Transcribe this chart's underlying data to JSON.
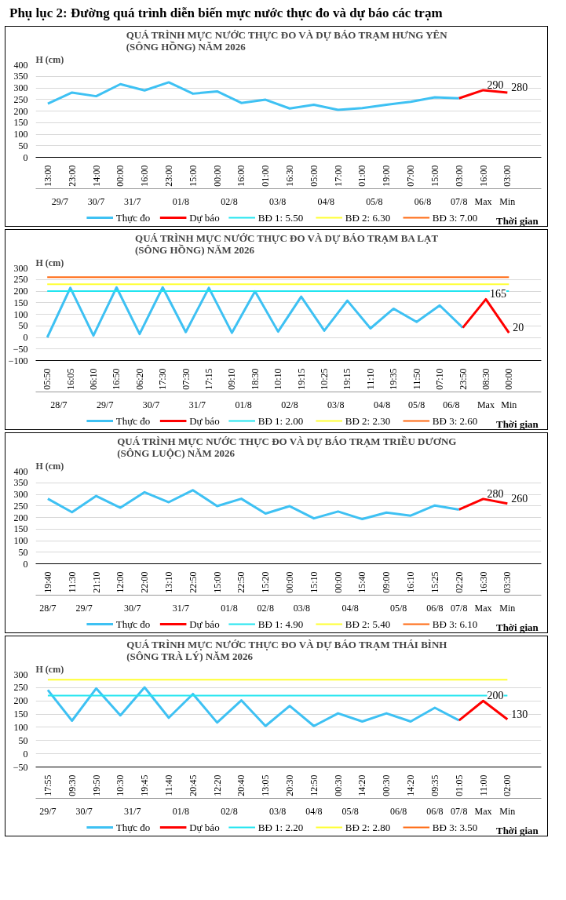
{
  "chart_data": [
    {
      "type": "line",
      "title": "QUÁ TRÌNH MỰC NƯỚC THỰC ĐO VÀ DỰ BÁO TRẠM  HƯNG YÊN\n(SÔNG HỒNG) NĂM 2026",
      "ylabel": "H (cm)",
      "xlabel": "Thời gian",
      "categories": [
        "13:00",
        "23:00",
        "14:00",
        "00:00",
        "16:00",
        "23:00",
        "15:00",
        "00:00",
        "16:00",
        "01:00",
        "16:30",
        "05:00",
        "17:00",
        "01:00",
        "19:00",
        "07:00",
        "15:00",
        "03:00",
        "16:00",
        "03:00"
      ],
      "ylim": [
        0,
        400
      ],
      "yticks": [
        0,
        50,
        100,
        150,
        200,
        250,
        300,
        350,
        400
      ],
      "grid": "y",
      "legend": "bottom",
      "series": [
        {
          "name": "Thực đo",
          "color": "#3ec1f3",
          "values": [
            232,
            280,
            264,
            316,
            289,
            324,
            275,
            285,
            235,
            249,
            211,
            227,
            205,
            213,
            227,
            240,
            259,
            255,
            null,
            null
          ]
        },
        {
          "name": "Dự báo",
          "color": "#ff0000",
          "values": [
            null,
            null,
            null,
            null,
            null,
            null,
            null,
            null,
            null,
            null,
            null,
            null,
            null,
            null,
            null,
            null,
            null,
            255,
            290,
            280
          ],
          "value_labels": [
            null,
            null,
            null,
            null,
            null,
            null,
            null,
            null,
            null,
            null,
            null,
            null,
            null,
            null,
            null,
            null,
            null,
            null,
            "290",
            "280"
          ]
        },
        {
          "name": "BĐ 1: 5.50",
          "color": "#22e5f0",
          "values": [
            null,
            null,
            null,
            null,
            null,
            null,
            null,
            null,
            null,
            null,
            null,
            null,
            null,
            null,
            null,
            null,
            null,
            null,
            null,
            null
          ]
        },
        {
          "name": "BĐ 2: 6.30",
          "color": "#ffff33",
          "values": [
            null,
            null,
            null,
            null,
            null,
            null,
            null,
            null,
            null,
            null,
            null,
            null,
            null,
            null,
            null,
            null,
            null,
            null,
            null,
            null
          ]
        },
        {
          "name": "BĐ 3: 7.00",
          "color": "#ff6a13",
          "values": [
            null,
            null,
            null,
            null,
            null,
            null,
            null,
            null,
            null,
            null,
            null,
            null,
            null,
            null,
            null,
            null,
            null,
            null,
            null,
            null
          ]
        }
      ],
      "annotations": [
        "Phụ lục 2: Đường quá trình diễn biến mực nước thực đo và dự báo các trạm",
        "29/7",
        "30/7",
        "31/7",
        "01/8",
        "02/8",
        "03/8",
        "04/8",
        "05/8",
        "06/8",
        "07/8",
        "Max",
        "Min"
      ]
    },
    {
      "type": "line",
      "title": "QUÁ TRÌNH MỰC NƯỚC THỰC ĐO VÀ DỰ BÁO TRẠM  BA LẠT\n(SÔNG HỒNG) NĂM 2026",
      "ylabel": "H (cm)",
      "xlabel": "Thời gian",
      "categories": [
        "05:50",
        "16:05",
        "06:10",
        "16:50",
        "06:20",
        "17:30",
        "07:30",
        "17:15",
        "09:10",
        "18:30",
        "10:10",
        "19:15",
        "10:25",
        "19:15",
        "11:10",
        "19:35",
        "11:50",
        "07:10",
        "23:50",
        "08:30",
        "00:00"
      ],
      "ylim": [
        -100,
        300
      ],
      "yticks": [
        -100,
        -50,
        0,
        50,
        100,
        150,
        200,
        250,
        300
      ],
      "grid": "y",
      "legend": "bottom",
      "series": [
        {
          "name": "Thực đo",
          "color": "#3ec1f3",
          "values": [
            0,
            214,
            8,
            216,
            15,
            216,
            23,
            214,
            20,
            199,
            25,
            176,
            29,
            159,
            39,
            124,
            67,
            138,
            42,
            null,
            null
          ]
        },
        {
          "name": "Dự báo",
          "color": "#ff0000",
          "values": [
            null,
            null,
            null,
            null,
            null,
            null,
            null,
            null,
            null,
            null,
            null,
            null,
            null,
            null,
            null,
            null,
            null,
            null,
            42,
            165,
            20
          ],
          "value_labels": [
            null,
            null,
            null,
            null,
            null,
            null,
            null,
            null,
            null,
            null,
            null,
            null,
            null,
            null,
            null,
            null,
            null,
            null,
            null,
            "165",
            "20"
          ]
        },
        {
          "name": "BĐ 1: 2.00",
          "color": "#22e5f0",
          "values": [
            200,
            200,
            200,
            200,
            200,
            200,
            200,
            200,
            200,
            200,
            200,
            200,
            200,
            200,
            200,
            200,
            200,
            200,
            200,
            200,
            200
          ]
        },
        {
          "name": "BĐ 2: 2.30",
          "color": "#ffff33",
          "values": [
            230,
            230,
            230,
            230,
            230,
            230,
            230,
            230,
            230,
            230,
            230,
            230,
            230,
            230,
            230,
            230,
            230,
            230,
            230,
            230,
            230
          ]
        },
        {
          "name": "BĐ 3: 2.60",
          "color": "#ff6a13",
          "values": [
            260,
            260,
            260,
            260,
            260,
            260,
            260,
            260,
            260,
            260,
            260,
            260,
            260,
            260,
            260,
            260,
            260,
            260,
            260,
            260,
            260
          ]
        }
      ],
      "annotations": [
        "28/7",
        "29/7",
        "30/7",
        "31/7",
        "01/8",
        "02/8",
        "03/8",
        "04/8",
        "05/8",
        "06/8",
        "Max",
        "Min"
      ]
    },
    {
      "type": "line",
      "title": "QUÁ TRÌNH MỰC NƯỚC THỰC ĐO VÀ DỰ BÁO TRẠM  TRIỀU DƯƠNG\n(SÔNG LUỘC) NĂM 2026",
      "ylabel": "H (cm)",
      "xlabel": "Thời gian",
      "categories": [
        "19:40",
        "11:30",
        "21:10",
        "12:00",
        "22:00",
        "13:10",
        "22:50",
        "15:00",
        "22:50",
        "15:20",
        "00:00",
        "15:10",
        "00:00",
        "15:40",
        "09:00",
        "16:10",
        "15:25",
        "02:20",
        "16:30",
        "03:30"
      ],
      "ylim": [
        0,
        400
      ],
      "yticks": [
        0,
        50,
        100,
        150,
        200,
        250,
        300,
        350,
        400
      ],
      "grid": "y",
      "legend": "bottom",
      "series": [
        {
          "name": "Thực đo",
          "color": "#3ec1f3",
          "values": [
            281,
            223,
            293,
            242,
            309,
            266,
            318,
            249,
            281,
            217,
            249,
            196,
            226,
            193,
            221,
            208,
            252,
            234,
            null,
            null
          ]
        },
        {
          "name": "Dự báo",
          "color": "#ff0000",
          "values": [
            null,
            null,
            null,
            null,
            null,
            null,
            null,
            null,
            null,
            null,
            null,
            null,
            null,
            null,
            null,
            null,
            null,
            234,
            280,
            260
          ],
          "value_labels": [
            null,
            null,
            null,
            null,
            null,
            null,
            null,
            null,
            null,
            null,
            null,
            null,
            null,
            null,
            null,
            null,
            null,
            null,
            "280",
            "260"
          ]
        },
        {
          "name": "BĐ 1: 4.90",
          "color": "#22e5f0",
          "values": [
            null,
            null,
            null,
            null,
            null,
            null,
            null,
            null,
            null,
            null,
            null,
            null,
            null,
            null,
            null,
            null,
            null,
            null,
            null,
            null
          ]
        },
        {
          "name": "BĐ 2: 5.40",
          "color": "#ffff33",
          "values": [
            null,
            null,
            null,
            null,
            null,
            null,
            null,
            null,
            null,
            null,
            null,
            null,
            null,
            null,
            null,
            null,
            null,
            null,
            null,
            null
          ]
        },
        {
          "name": "BĐ 3: 6.10",
          "color": "#ff6a13",
          "values": [
            null,
            null,
            null,
            null,
            null,
            null,
            null,
            null,
            null,
            null,
            null,
            null,
            null,
            null,
            null,
            null,
            null,
            null,
            null,
            null
          ]
        }
      ],
      "annotations": [
        "28/7",
        "29/7",
        "30/7",
        "31/7",
        "01/8",
        "02/8",
        "03/8",
        "04/8",
        "05/8",
        "06/8",
        "07/8",
        "Max",
        "Min"
      ]
    },
    {
      "type": "line",
      "title": "QUÁ TRÌNH MỰC NƯỚC THỰC ĐO VÀ DỰ BÁO TRẠM  THÁI BÌNH\n(SÔNG TRÀ LÝ) NĂM 2026",
      "ylabel": "H (cm)",
      "xlabel": "Thời gian",
      "categories": [
        "17:55",
        "09:30",
        "19:50",
        "10:30",
        "19:45",
        "11:40",
        "20:45",
        "12:20",
        "20:40",
        "13:05",
        "20:30",
        "12:50",
        "00:30",
        "14:20",
        "00:30",
        "14:20",
        "09:35",
        "01:05",
        "11:00",
        "02:00"
      ],
      "ylim": [
        -50,
        300
      ],
      "yticks": [
        -50,
        0,
        50,
        100,
        150,
        200,
        250,
        300
      ],
      "grid": "y",
      "legend": "bottom",
      "series": [
        {
          "name": "Thực đo",
          "color": "#3ec1f3",
          "values": [
            241,
            125,
            247,
            145,
            251,
            136,
            226,
            118,
            202,
            105,
            181,
            105,
            153,
            122,
            153,
            122,
            174,
            126,
            null,
            null
          ]
        },
        {
          "name": "Dự báo",
          "color": "#ff0000",
          "values": [
            null,
            null,
            null,
            null,
            null,
            null,
            null,
            null,
            null,
            null,
            null,
            null,
            null,
            null,
            null,
            null,
            null,
            126,
            200,
            130
          ],
          "value_labels": [
            null,
            null,
            null,
            null,
            null,
            null,
            null,
            null,
            null,
            null,
            null,
            null,
            null,
            null,
            null,
            null,
            null,
            null,
            "200",
            "130"
          ]
        },
        {
          "name": "BĐ 1: 2.20",
          "color": "#22e5f0",
          "values": [
            220,
            220,
            220,
            220,
            220,
            220,
            220,
            220,
            220,
            220,
            220,
            220,
            220,
            220,
            220,
            220,
            220,
            220,
            220,
            220
          ]
        },
        {
          "name": "BĐ 2: 2.80",
          "color": "#ffff33",
          "values": [
            280,
            280,
            280,
            280,
            280,
            280,
            280,
            280,
            280,
            280,
            280,
            280,
            280,
            280,
            280,
            280,
            280,
            280,
            280,
            280
          ]
        },
        {
          "name": "BĐ 3: 3.50",
          "color": "#ff6a13",
          "values": [
            null,
            null,
            null,
            null,
            null,
            null,
            null,
            null,
            null,
            null,
            null,
            null,
            null,
            null,
            null,
            null,
            null,
            null,
            null,
            null
          ]
        }
      ],
      "annotations": [
        "29/7",
        "30/7",
        "31/7",
        "01/8",
        "02/8",
        "03/8",
        "04/8",
        "05/8",
        "06/8",
        "06/8",
        "07/8",
        "Max",
        "Min"
      ]
    }
  ]
}
